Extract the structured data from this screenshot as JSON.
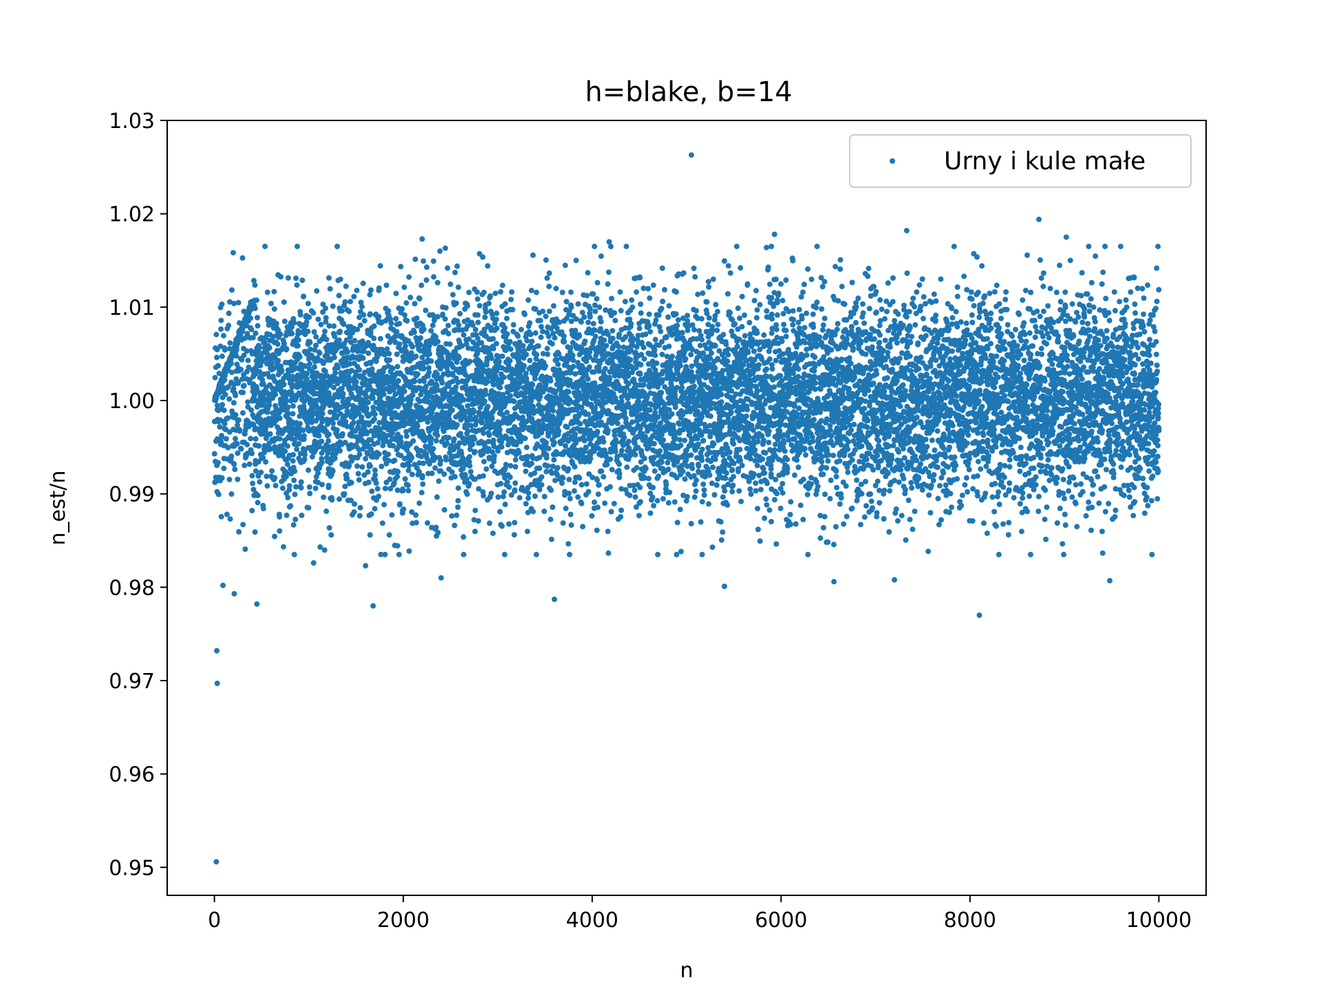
{
  "chart_data": {
    "type": "scatter",
    "title": "h=blake, b=14",
    "xlabel": "n",
    "ylabel": "n_est/n",
    "xlim": [
      -500,
      10500
    ],
    "ylim": [
      0.947,
      1.03
    ],
    "xticks": [
      0,
      2000,
      4000,
      6000,
      8000,
      10000
    ],
    "xtick_labels": [
      "0",
      "2000",
      "4000",
      "6000",
      "8000",
      "10000"
    ],
    "yticks": [
      0.95,
      0.96,
      0.97,
      0.98,
      0.99,
      1.0,
      1.01,
      1.02,
      1.03
    ],
    "ytick_labels": [
      "0.95",
      "0.96",
      "0.97",
      "0.98",
      "0.99",
      "1.00",
      "1.01",
      "1.02",
      "1.03"
    ],
    "grid": false,
    "legend_position": "top-right",
    "series": [
      {
        "name": "Urny i kule małe",
        "color": "#1f77b4",
        "pattern": {
          "x_range": [
            1,
            10000
          ],
          "initial_ramp": {
            "x": [
              1,
              400
            ],
            "y": [
              1.0,
              1.0105
            ]
          },
          "bulk_center": 1.0,
          "bulk_spread": 0.0055,
          "count": 10000
        },
        "points": [
          {
            "x": 20,
            "y": 0.9506
          },
          {
            "x": 30,
            "y": 0.9697
          },
          {
            "x": 25,
            "y": 0.9732
          },
          {
            "x": 90,
            "y": 0.9802
          },
          {
            "x": 210,
            "y": 0.9793
          },
          {
            "x": 450,
            "y": 0.9782
          },
          {
            "x": 1680,
            "y": 0.978
          },
          {
            "x": 3600,
            "y": 0.9787
          },
          {
            "x": 8100,
            "y": 0.977
          },
          {
            "x": 5050,
            "y": 1.0263
          },
          {
            "x": 8730,
            "y": 1.0194
          },
          {
            "x": 2200,
            "y": 1.0173
          },
          {
            "x": 7330,
            "y": 1.0182
          },
          {
            "x": 9020,
            "y": 1.0175
          },
          {
            "x": 4180,
            "y": 1.017
          },
          {
            "x": 5930,
            "y": 1.0178
          },
          {
            "x": 1050,
            "y": 0.9826
          },
          {
            "x": 1600,
            "y": 0.9823
          },
          {
            "x": 5400,
            "y": 0.9801
          },
          {
            "x": 6560,
            "y": 0.9806
          },
          {
            "x": 7200,
            "y": 0.9808
          },
          {
            "x": 9480,
            "y": 0.9807
          },
          {
            "x": 2400,
            "y": 0.981
          },
          {
            "x": 1300,
            "y": 1.0165
          },
          {
            "x": 9990,
            "y": 1.0165
          }
        ]
      }
    ]
  }
}
